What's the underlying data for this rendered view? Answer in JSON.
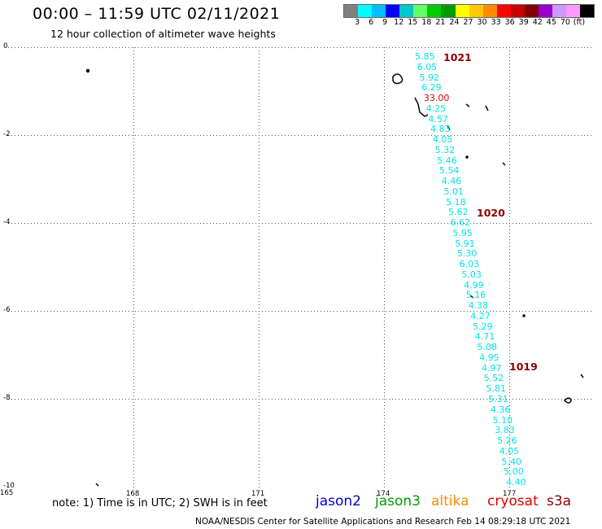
{
  "title": "00:00 – 11:59 UTC 02/11/2021",
  "subtitle": "12 hour collection of altimeter wave heights",
  "legend": {
    "colors": [
      "#808080",
      "#00ffff",
      "#00bfff",
      "#0000ff",
      "#00c8c8",
      "#66ff66",
      "#00cc00",
      "#009900",
      "#ffff00",
      "#ffc800",
      "#ff8c00",
      "#ff0000",
      "#c80000",
      "#800000",
      "#9900cc",
      "#cc99ff",
      "#ff99ff",
      "#000000"
    ],
    "labels": [
      "3",
      "6",
      "9",
      "12",
      "15",
      "18",
      "21",
      "24",
      "27",
      "30",
      "33",
      "36",
      "39",
      "42",
      "45",
      "70",
      "(ft)"
    ]
  },
  "y_axis": {
    "labels": [
      "0",
      "-2",
      "-4",
      "-6",
      "-8",
      "-10"
    ]
  },
  "x_axis": {
    "labels": [
      "165",
      "168",
      "171",
      "174",
      "177"
    ]
  },
  "wave_heights": [
    {
      "v": "5.85",
      "c": "cyan"
    },
    {
      "v": "6.05",
      "c": "cyan"
    },
    {
      "v": "5.92",
      "c": "cyan"
    },
    {
      "v": "6.29",
      "c": "cyan"
    },
    {
      "v": "33.00",
      "c": "red"
    },
    {
      "v": "4.25",
      "c": "cyan"
    },
    {
      "v": "4.57",
      "c": "cyan"
    },
    {
      "v": "4.83",
      "c": "cyan"
    },
    {
      "v": "4.05",
      "c": "cyan"
    },
    {
      "v": "5.32",
      "c": "cyan"
    },
    {
      "v": "5.46",
      "c": "cyan"
    },
    {
      "v": "5.54",
      "c": "cyan"
    },
    {
      "v": "4.46",
      "c": "cyan"
    },
    {
      "v": "5.01",
      "c": "cyan"
    },
    {
      "v": "5.18",
      "c": "cyan"
    },
    {
      "v": "5.62",
      "c": "cyan"
    },
    {
      "v": "6.62",
      "c": "cyan"
    },
    {
      "v": "5.95",
      "c": "cyan"
    },
    {
      "v": "5.91",
      "c": "cyan"
    },
    {
      "v": "5.30",
      "c": "cyan"
    },
    {
      "v": "6.03",
      "c": "cyan"
    },
    {
      "v": "5.03",
      "c": "cyan"
    },
    {
      "v": "4.99",
      "c": "cyan"
    },
    {
      "v": "5.16",
      "c": "cyan"
    },
    {
      "v": "4.38",
      "c": "cyan"
    },
    {
      "v": "4.27",
      "c": "cyan"
    },
    {
      "v": "5.29",
      "c": "cyan"
    },
    {
      "v": "4.71",
      "c": "cyan"
    },
    {
      "v": "5.08",
      "c": "cyan"
    },
    {
      "v": "4.95",
      "c": "cyan"
    },
    {
      "v": "4.97",
      "c": "cyan"
    },
    {
      "v": "5.52",
      "c": "cyan"
    },
    {
      "v": "5.81",
      "c": "cyan"
    },
    {
      "v": "5.31",
      "c": "cyan"
    },
    {
      "v": "4.36",
      "c": "cyan"
    },
    {
      "v": "5.10",
      "c": "cyan"
    },
    {
      "v": "3.83",
      "c": "cyan"
    },
    {
      "v": "5.26",
      "c": "cyan"
    },
    {
      "v": "4.05",
      "c": "cyan"
    },
    {
      "v": "5.40",
      "c": "cyan"
    },
    {
      "v": "5.00",
      "c": "cyan"
    },
    {
      "v": "4.40",
      "c": "cyan"
    }
  ],
  "pressures": [
    "1021",
    "1020",
    "1019"
  ],
  "note": "note: 1) Time is in UTC; 2) SWH is in feet",
  "missions": [
    {
      "name": "jason2",
      "color": "#0000cc"
    },
    {
      "name": "jason3",
      "color": "#009900"
    },
    {
      "name": "altika",
      "color": "#ff8c00"
    },
    {
      "name": "cryosat",
      "color": "#dd0000"
    },
    {
      "name": "s3a",
      "color": "#8b0000"
    }
  ],
  "footer": "NOAA/NESDIS Center for Satellite Applications and Research    Feb 14 08:29:18 UTC 2021"
}
